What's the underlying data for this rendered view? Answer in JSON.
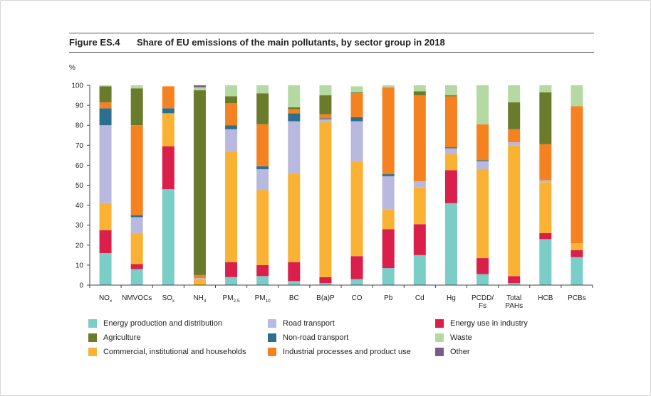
{
  "figure": {
    "label": "Figure ES.4",
    "title": "Share of EU emissions of the main pollutants, by sector group in 2018"
  },
  "chart_data": {
    "type": "bar",
    "stacked": true,
    "ylabel": "%",
    "ylim": [
      0,
      100
    ],
    "yticks": [
      "0",
      "10",
      "20",
      "30",
      "40",
      "50",
      "60",
      "70",
      "80",
      "90",
      "100"
    ],
    "categories": [
      {
        "base": "NO",
        "sub": "x"
      },
      {
        "base": "NMVOCs",
        "sub": ""
      },
      {
        "base": "SO",
        "sub": "x"
      },
      {
        "base": "NH",
        "sub": "3"
      },
      {
        "base": "PM",
        "sub": "2.5"
      },
      {
        "base": "PM",
        "sub": "10"
      },
      {
        "base": "BC",
        "sub": ""
      },
      {
        "base": "B(a)P",
        "sub": ""
      },
      {
        "base": "CO",
        "sub": ""
      },
      {
        "base": "Pb",
        "sub": ""
      },
      {
        "base": "Cd",
        "sub": ""
      },
      {
        "base": "Hg",
        "sub": ""
      },
      {
        "base": "PCDD/",
        "sub": "",
        "line2": "Fs"
      },
      {
        "base": "Total",
        "sub": "",
        "line2": "PAHs"
      },
      {
        "base": "HCB",
        "sub": ""
      },
      {
        "base": "PCBs",
        "sub": ""
      }
    ],
    "series": [
      {
        "name": "Energy production and distribution",
        "color": "#7bcdc8",
        "values": [
          16,
          8,
          48,
          0,
          4,
          4.5,
          2,
          1,
          3,
          8.5,
          15,
          41,
          5.5,
          1,
          23,
          14
        ]
      },
      {
        "name": "Energy use in industry",
        "color": "#d91f4a",
        "values": [
          11.5,
          2.5,
          21.5,
          0,
          7.5,
          5.5,
          9.5,
          3,
          11.5,
          19.5,
          15.5,
          16.5,
          8,
          3.5,
          3,
          3.5
        ]
      },
      {
        "name": "Commercial, institutional and households",
        "color": "#f9b233",
        "values": [
          13.5,
          15.5,
          16.5,
          2.5,
          55.5,
          37.5,
          44.5,
          77.5,
          47.5,
          10,
          18.5,
          8,
          44.5,
          65.5,
          25.5,
          3.5
        ]
      },
      {
        "name": "Road transport",
        "color": "#b9b9df",
        "values": [
          39,
          8,
          0,
          1,
          11,
          10.5,
          26,
          1.5,
          20,
          16.5,
          3,
          3,
          4,
          1.5,
          1,
          0
        ]
      },
      {
        "name": "Non-road transport",
        "color": "#2d6f8e",
        "values": [
          8.5,
          1,
          2.5,
          0,
          2,
          1.5,
          4,
          0.5,
          2,
          1,
          0,
          0.5,
          0.5,
          0,
          0,
          0
        ]
      },
      {
        "name": "Industrial processes and product use",
        "color": "#f58220",
        "values": [
          3,
          45,
          11,
          1.5,
          11,
          21,
          2,
          2,
          12,
          43.5,
          43,
          25.5,
          18,
          6.5,
          18,
          68.5
        ]
      },
      {
        "name": "Agriculture",
        "color": "#6b7b2c",
        "values": [
          8,
          18.5,
          0,
          92.5,
          3.5,
          15.5,
          1,
          9.5,
          0.5,
          0,
          2,
          0.5,
          0,
          13.5,
          26,
          0
        ]
      },
      {
        "name": "Waste",
        "color": "#b4d9a3",
        "values": [
          0.5,
          1.5,
          0,
          1.5,
          5.5,
          4,
          11,
          5,
          3,
          1,
          3,
          5,
          19.5,
          8.5,
          3.5,
          10.5
        ]
      },
      {
        "name": "Other",
        "color": "#7a5c8a",
        "values": [
          0,
          0,
          0,
          1,
          0,
          0,
          0,
          0,
          0,
          0,
          0,
          0,
          0,
          0,
          0,
          0
        ]
      }
    ],
    "legend": {
      "placement": "bottom",
      "order": [
        "Energy production and distribution",
        "Road transport",
        "Energy use in industry",
        "Agriculture",
        "Non-road transport",
        "Waste",
        "Commercial, institutional and households",
        "Industrial processes and product use",
        "Other"
      ]
    }
  }
}
